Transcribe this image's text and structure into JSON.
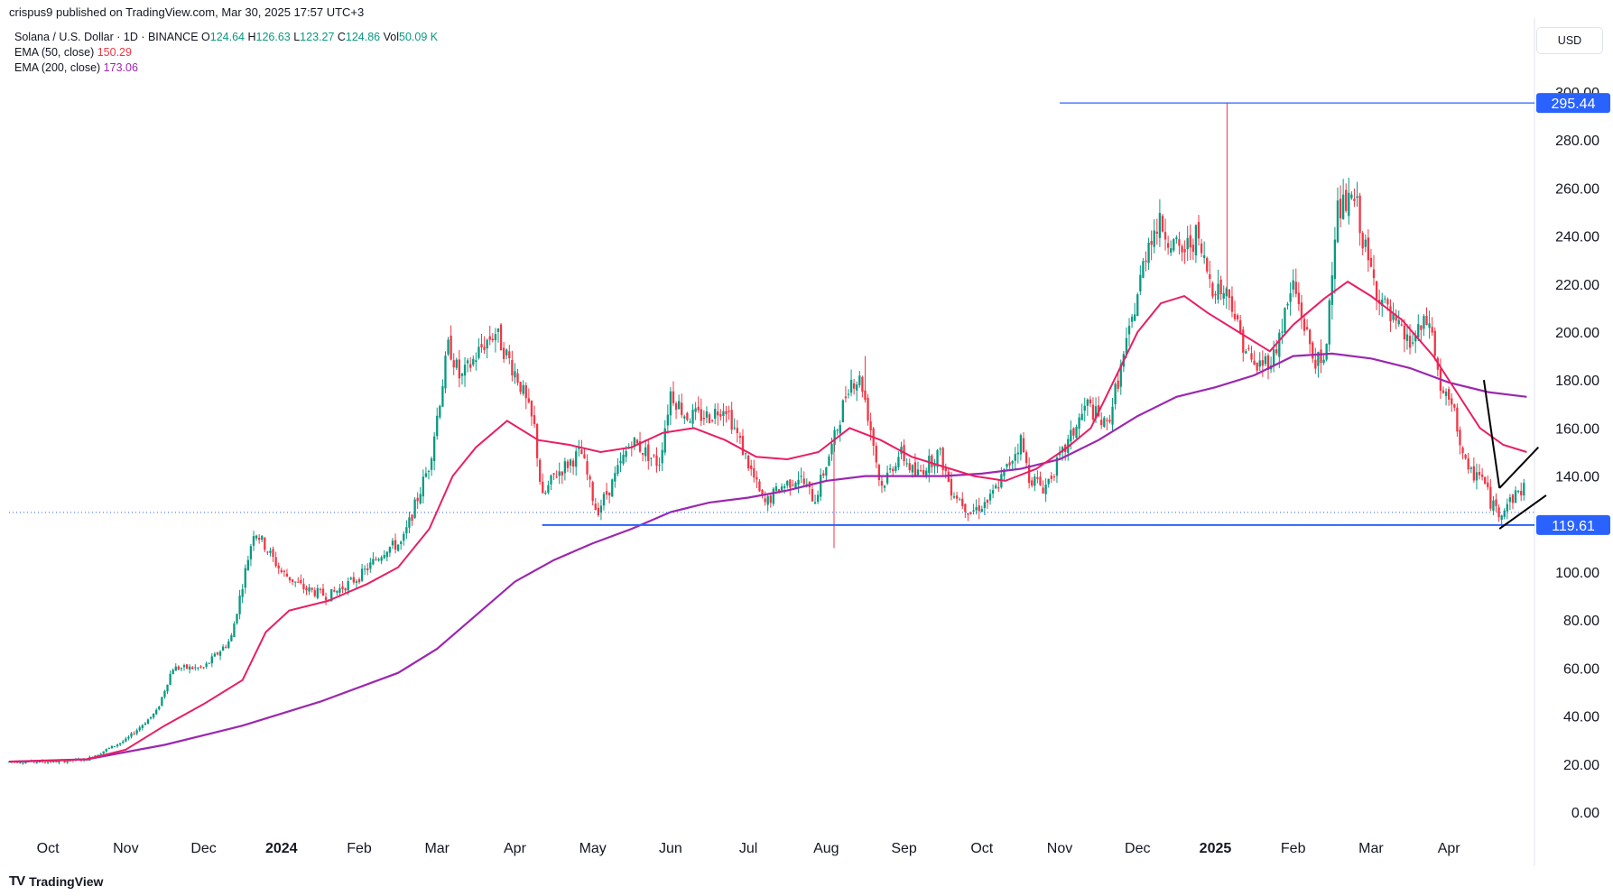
{
  "header": {
    "published": "crispus9 published on TradingView.com, Mar 30, 2025 17:57 UTC+3",
    "symbol": "Solana / U.S. Dollar · 1D · BINANCE",
    "ohlc": [
      {
        "k": "O",
        "v": "124.64"
      },
      {
        "k": "H",
        "v": "126.63"
      },
      {
        "k": "L",
        "v": "123.27"
      },
      {
        "k": "C",
        "v": "124.86"
      },
      {
        "k": "Vol",
        "v": "50.09 K"
      }
    ],
    "ema50_label": "EMA (50, close)",
    "ema50_value": "150.29",
    "ema200_label": "EMA (200, close)",
    "ema200_value": "173.06",
    "currency": "USD"
  },
  "footer": {
    "brand": "TradingView",
    "logo": "TV"
  },
  "colors": {
    "up": "#089981",
    "down": "#f23645",
    "ema50": "#e91e63",
    "ema200": "#9c27b0",
    "level": "#2962ff"
  },
  "chart_data": {
    "type": "candlestick",
    "y_unit": "USD",
    "ylim": [
      0,
      300
    ],
    "y_ticks": [
      "0.00",
      "20.00",
      "40.00",
      "60.00",
      "80.00",
      "100.00",
      "120.00",
      "140.00",
      "160.00",
      "180.00",
      "200.00",
      "220.00",
      "240.00",
      "260.00",
      "280.00",
      "300.00"
    ],
    "x_ticks": [
      {
        "label": "Oct",
        "pos": 0.5,
        "bold": false
      },
      {
        "label": "Nov",
        "pos": 1.5,
        "bold": false
      },
      {
        "label": "Dec",
        "pos": 2.5,
        "bold": false
      },
      {
        "label": "2024",
        "pos": 3.5,
        "bold": true
      },
      {
        "label": "Feb",
        "pos": 4.5,
        "bold": false
      },
      {
        "label": "Mar",
        "pos": 5.5,
        "bold": false
      },
      {
        "label": "Apr",
        "pos": 6.5,
        "bold": false
      },
      {
        "label": "May",
        "pos": 7.5,
        "bold": false
      },
      {
        "label": "Jun",
        "pos": 8.5,
        "bold": false
      },
      {
        "label": "Jul",
        "pos": 9.5,
        "bold": false
      },
      {
        "label": "Aug",
        "pos": 10.5,
        "bold": false
      },
      {
        "label": "Sep",
        "pos": 11.5,
        "bold": false
      },
      {
        "label": "Oct",
        "pos": 12.5,
        "bold": false
      },
      {
        "label": "Nov",
        "pos": 13.5,
        "bold": false
      },
      {
        "label": "Dec",
        "pos": 14.5,
        "bold": false
      },
      {
        "label": "2025",
        "pos": 15.5,
        "bold": true
      },
      {
        "label": "Feb",
        "pos": 16.5,
        "bold": false
      },
      {
        "label": "Mar",
        "pos": 17.5,
        "bold": false
      },
      {
        "label": "Apr",
        "pos": 18.5,
        "bold": false
      }
    ],
    "x_domain": [
      0,
      19.6
    ],
    "price_anchors": [
      [
        0.0,
        21
      ],
      [
        0.6,
        21
      ],
      [
        1.0,
        22
      ],
      [
        1.5,
        30
      ],
      [
        1.9,
        42
      ],
      [
        2.1,
        60
      ],
      [
        2.5,
        60
      ],
      [
        2.85,
        72
      ],
      [
        3.15,
        118
      ],
      [
        3.5,
        100
      ],
      [
        3.8,
        93
      ],
      [
        4.1,
        90
      ],
      [
        4.5,
        98
      ],
      [
        4.85,
        110
      ],
      [
        5.05,
        112
      ],
      [
        5.4,
        145
      ],
      [
        5.65,
        195
      ],
      [
        5.8,
        180
      ],
      [
        6.1,
        195
      ],
      [
        6.25,
        200
      ],
      [
        6.55,
        180
      ],
      [
        6.75,
        160
      ],
      [
        6.85,
        130
      ],
      [
        7.0,
        140
      ],
      [
        7.35,
        150
      ],
      [
        7.55,
        125
      ],
      [
        7.75,
        137
      ],
      [
        8.0,
        155
      ],
      [
        8.35,
        145
      ],
      [
        8.5,
        175
      ],
      [
        8.7,
        165
      ],
      [
        9.0,
        165
      ],
      [
        9.2,
        170
      ],
      [
        9.5,
        145
      ],
      [
        9.7,
        128
      ],
      [
        9.9,
        135
      ],
      [
        10.15,
        140
      ],
      [
        10.35,
        130
      ],
      [
        10.6,
        155
      ],
      [
        10.8,
        180
      ],
      [
        10.95,
        180
      ],
      [
        11.1,
        155
      ],
      [
        11.2,
        135
      ],
      [
        11.45,
        150
      ],
      [
        11.65,
        140
      ],
      [
        11.95,
        150
      ],
      [
        12.1,
        135
      ],
      [
        12.35,
        125
      ],
      [
        12.6,
        130
      ],
      [
        12.85,
        145
      ],
      [
        13.0,
        155
      ],
      [
        13.1,
        140
      ],
      [
        13.3,
        135
      ],
      [
        13.55,
        150
      ],
      [
        13.85,
        170
      ],
      [
        14.1,
        160
      ],
      [
        14.4,
        200
      ],
      [
        14.65,
        240
      ],
      [
        14.8,
        245
      ],
      [
        15.05,
        232
      ],
      [
        15.25,
        240
      ],
      [
        15.45,
        220
      ],
      [
        15.7,
        215
      ],
      [
        15.8,
        200
      ],
      [
        16.0,
        185
      ],
      [
        16.25,
        190
      ],
      [
        16.5,
        220
      ],
      [
        16.75,
        190
      ],
      [
        16.9,
        185
      ],
      [
        17.05,
        250
      ],
      [
        17.3,
        255
      ],
      [
        17.45,
        230
      ],
      [
        17.55,
        220
      ],
      [
        17.75,
        205
      ],
      [
        18.0,
        195
      ],
      [
        18.25,
        205
      ],
      [
        18.4,
        175
      ],
      [
        18.55,
        168
      ],
      [
        18.75,
        140
      ],
      [
        18.9,
        142
      ],
      [
        19.05,
        128
      ],
      [
        19.15,
        125
      ],
      [
        19.35,
        132
      ],
      [
        19.55,
        138
      ],
      [
        19.7,
        140
      ],
      [
        19.88,
        130
      ],
      [
        20.0,
        125
      ]
    ],
    "ema50_points": [
      [
        0.0,
        21
      ],
      [
        0.6,
        21.5
      ],
      [
        1.0,
        22
      ],
      [
        1.5,
        26
      ],
      [
        2.0,
        36
      ],
      [
        2.5,
        45
      ],
      [
        3.0,
        55
      ],
      [
        3.3,
        75
      ],
      [
        3.6,
        84
      ],
      [
        4.1,
        88
      ],
      [
        4.6,
        95
      ],
      [
        5.0,
        102
      ],
      [
        5.4,
        118
      ],
      [
        5.7,
        140
      ],
      [
        6.0,
        152
      ],
      [
        6.4,
        163
      ],
      [
        6.8,
        155
      ],
      [
        7.2,
        153
      ],
      [
        7.6,
        150
      ],
      [
        8.0,
        152
      ],
      [
        8.4,
        158
      ],
      [
        8.8,
        160
      ],
      [
        9.2,
        155
      ],
      [
        9.6,
        148
      ],
      [
        10.0,
        147
      ],
      [
        10.4,
        150
      ],
      [
        10.8,
        160
      ],
      [
        11.2,
        155
      ],
      [
        11.6,
        148
      ],
      [
        12.0,
        144
      ],
      [
        12.4,
        140
      ],
      [
        12.8,
        138
      ],
      [
        13.2,
        143
      ],
      [
        13.6,
        152
      ],
      [
        13.9,
        160
      ],
      [
        14.2,
        180
      ],
      [
        14.5,
        200
      ],
      [
        14.8,
        212
      ],
      [
        15.1,
        215
      ],
      [
        15.4,
        208
      ],
      [
        15.8,
        200
      ],
      [
        16.2,
        192
      ],
      [
        16.5,
        203
      ],
      [
        16.9,
        214
      ],
      [
        17.2,
        221
      ],
      [
        17.5,
        215
      ],
      [
        17.9,
        205
      ],
      [
        18.3,
        190
      ],
      [
        18.6,
        175
      ],
      [
        18.9,
        160
      ],
      [
        19.2,
        153
      ],
      [
        19.5,
        150
      ]
    ],
    "ema200_points": [
      [
        0.0,
        21
      ],
      [
        1.0,
        22
      ],
      [
        2.0,
        28
      ],
      [
        3.0,
        36
      ],
      [
        4.0,
        46
      ],
      [
        5.0,
        58
      ],
      [
        5.5,
        68
      ],
      [
        6.0,
        82
      ],
      [
        6.5,
        96
      ],
      [
        7.0,
        105
      ],
      [
        7.5,
        112
      ],
      [
        8.0,
        118
      ],
      [
        8.5,
        125
      ],
      [
        9.0,
        129
      ],
      [
        9.5,
        131
      ],
      [
        10.0,
        134
      ],
      [
        10.5,
        138
      ],
      [
        11.0,
        140
      ],
      [
        11.5,
        140
      ],
      [
        12.0,
        140
      ],
      [
        12.5,
        141
      ],
      [
        13.0,
        143
      ],
      [
        13.5,
        147
      ],
      [
        14.0,
        155
      ],
      [
        14.5,
        165
      ],
      [
        15.0,
        173
      ],
      [
        15.5,
        177
      ],
      [
        16.0,
        182
      ],
      [
        16.5,
        190
      ],
      [
        17.0,
        191
      ],
      [
        17.5,
        189
      ],
      [
        18.0,
        185
      ],
      [
        18.5,
        179
      ],
      [
        19.0,
        175
      ],
      [
        19.5,
        173
      ]
    ],
    "resistance_level": {
      "label": "295.44",
      "value": 295.44,
      "x_start": 13.5
    },
    "support_level": {
      "label": "119.61",
      "value": 119.61,
      "x_start": 6.85
    },
    "last_close": 124.86,
    "pattern_lines": [
      [
        [
          18.95,
          180
        ],
        [
          19.15,
          135
        ]
      ],
      [
        [
          19.15,
          135
        ],
        [
          19.65,
          152
        ]
      ],
      [
        [
          19.15,
          118
        ],
        [
          19.75,
          132
        ]
      ]
    ],
    "wick_spikes": [
      [
        10.6,
        110
      ],
      [
        15.65,
        295.44
      ],
      [
        11.0,
        190
      ]
    ]
  }
}
